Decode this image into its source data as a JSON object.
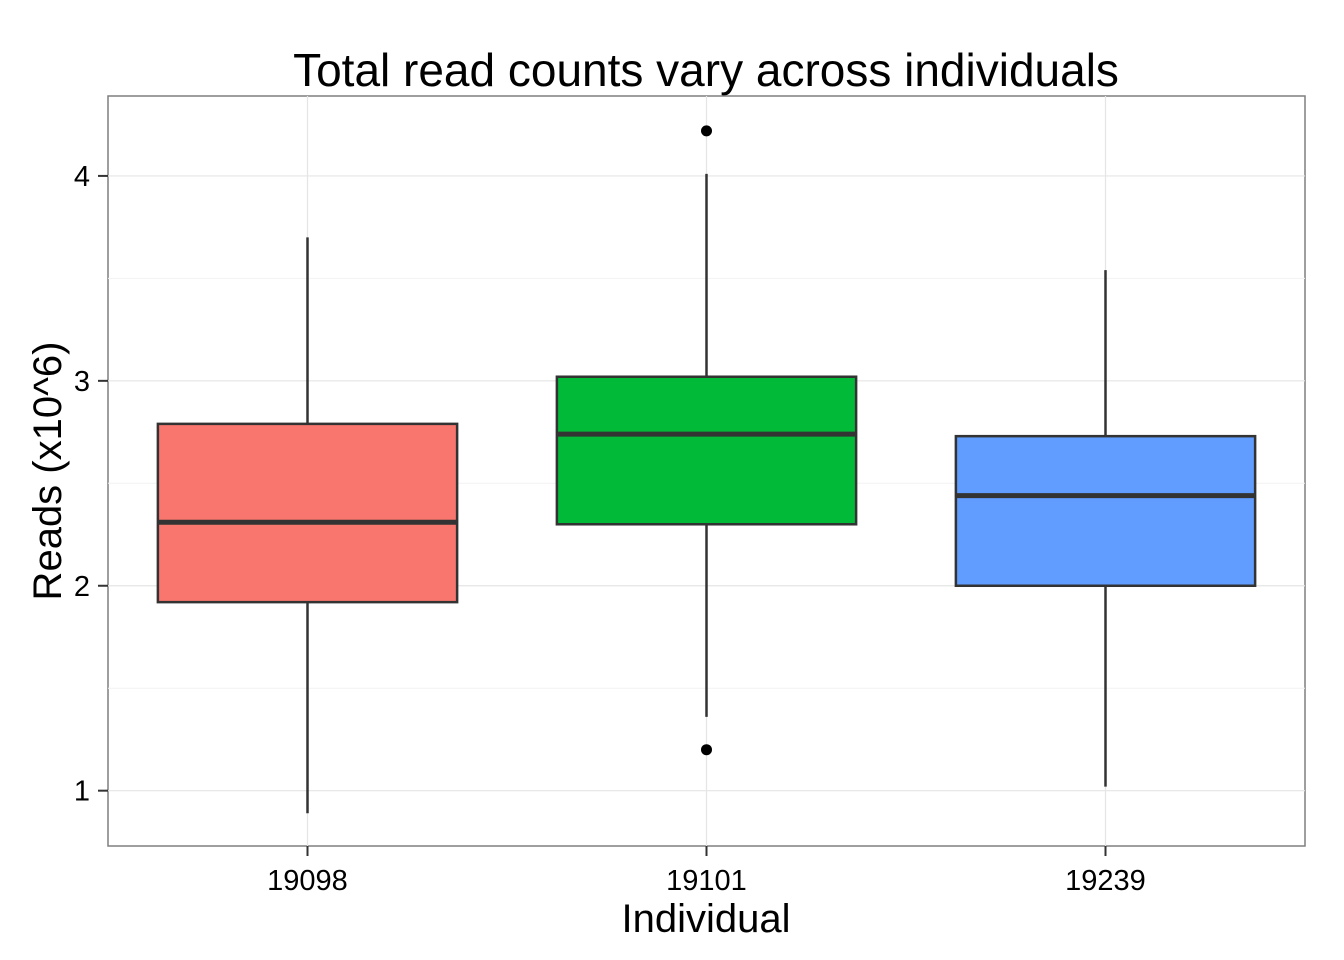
{
  "chart_data": {
    "type": "boxplot",
    "title": "Total read counts vary across individuals",
    "xlabel": "Individual",
    "ylabel": "Reads (x10^6)",
    "ylim": [
      0.73,
      4.39
    ],
    "yticks": [
      1,
      2,
      3,
      4
    ],
    "ytick_labels": [
      "1",
      "2",
      "3",
      "4"
    ],
    "grid": true,
    "categories": [
      "19098",
      "19101",
      "19239"
    ],
    "boxes": [
      {
        "name": "19098",
        "color": "#F8766D",
        "whisker_low": 0.89,
        "q1": 1.92,
        "median": 2.31,
        "q3": 2.79,
        "whisker_high": 3.7,
        "outliers": []
      },
      {
        "name": "19101",
        "color": "#00BA38",
        "whisker_low": 1.36,
        "q1": 2.3,
        "median": 2.74,
        "q3": 3.02,
        "whisker_high": 4.01,
        "outliers": [
          4.22,
          1.2
        ]
      },
      {
        "name": "19239",
        "color": "#619CFF",
        "whisker_low": 1.02,
        "q1": 2.0,
        "median": 2.44,
        "q3": 2.73,
        "whisker_high": 3.54,
        "outliers": []
      }
    ]
  }
}
